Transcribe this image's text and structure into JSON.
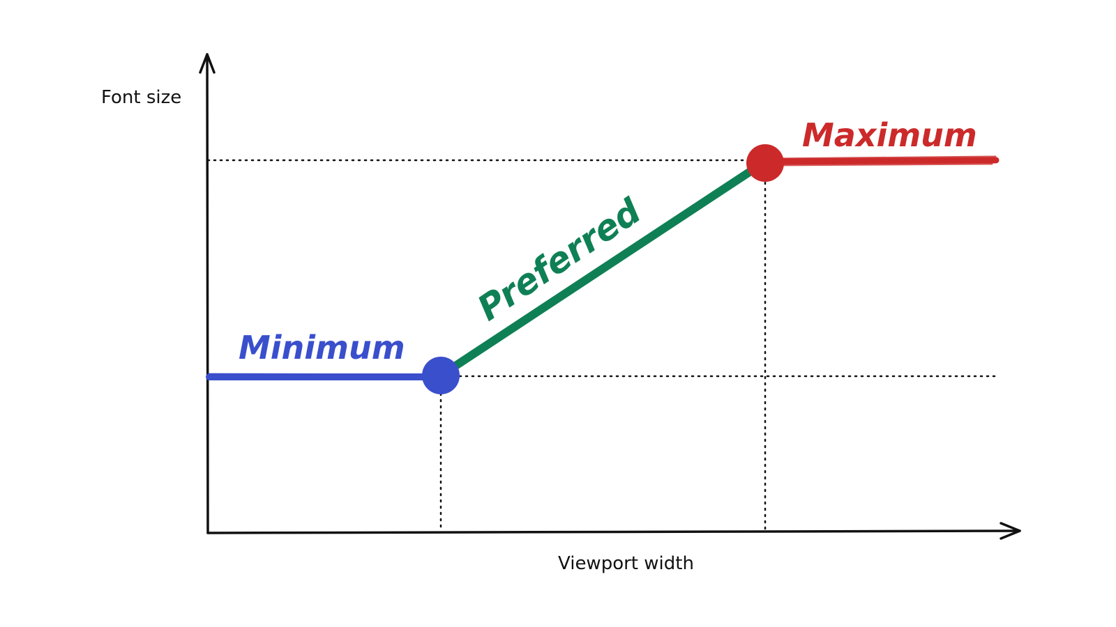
{
  "diagram": {
    "axes": {
      "y_label": "Font size",
      "x_label": "Viewport width"
    },
    "segments": {
      "minimum": {
        "label": "Minimum",
        "color": "#3a4fcc"
      },
      "preferred": {
        "label": "Preferred",
        "color": "#0f8055"
      },
      "maximum": {
        "label": "Maximum",
        "color": "#cc2a2a"
      }
    },
    "guide_color": "#111111"
  }
}
